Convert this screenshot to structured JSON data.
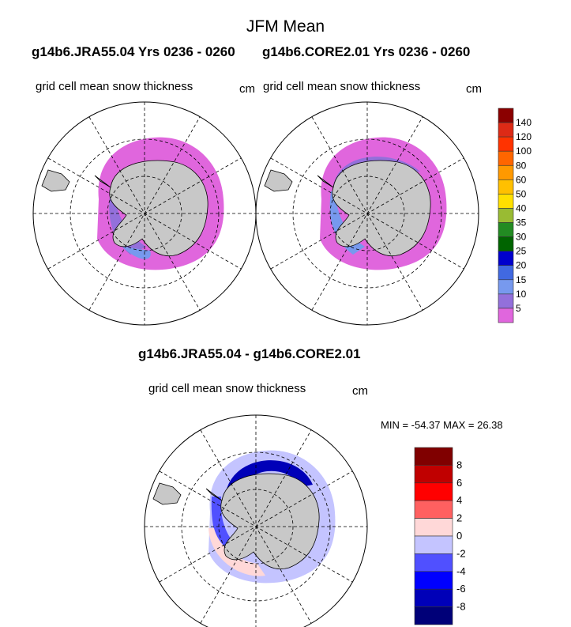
{
  "title": "JFM Mean",
  "panels": [
    {
      "case_label": "g14b6.JRA55.04  Yrs 0236 - 0260",
      "variable": "grid cell mean snow thickness",
      "units": "cm"
    },
    {
      "case_label": "g14b6.CORE2.01  Yrs 0236 - 0260",
      "variable": "grid cell mean snow thickness",
      "units": "cm"
    }
  ],
  "diff_panel": {
    "title": "g14b6.JRA55.04 - g14b6.CORE2.01",
    "variable": "grid cell mean snow thickness",
    "units": "cm",
    "minmax": "MIN = -54.37 MAX =  26.38"
  },
  "colorbar_main": {
    "labels": [
      "140",
      "120",
      "100",
      "80",
      "60",
      "50",
      "40",
      "35",
      "30",
      "25",
      "20",
      "15",
      "10",
      "5"
    ],
    "colors": [
      "#8b0000",
      "#dd2a16",
      "#ff3300",
      "#ff6600",
      "#ff9900",
      "#ffc000",
      "#ffe000",
      "#99bb33",
      "#228b22",
      "#006400",
      "#0000cd",
      "#4169e1",
      "#7799ee",
      "#9370db",
      "#e066dd"
    ]
  },
  "colorbar_diff": {
    "labels": [
      "8",
      "6",
      "4",
      "2",
      "0",
      "-2",
      "-4",
      "-6",
      "-8"
    ],
    "colors": [
      "#800000",
      "#c00000",
      "#ff0000",
      "#ff6060",
      "#ffd8d8",
      "#c4c4ff",
      "#5050ff",
      "#0000ff",
      "#0000b8",
      "#000078"
    ]
  }
}
